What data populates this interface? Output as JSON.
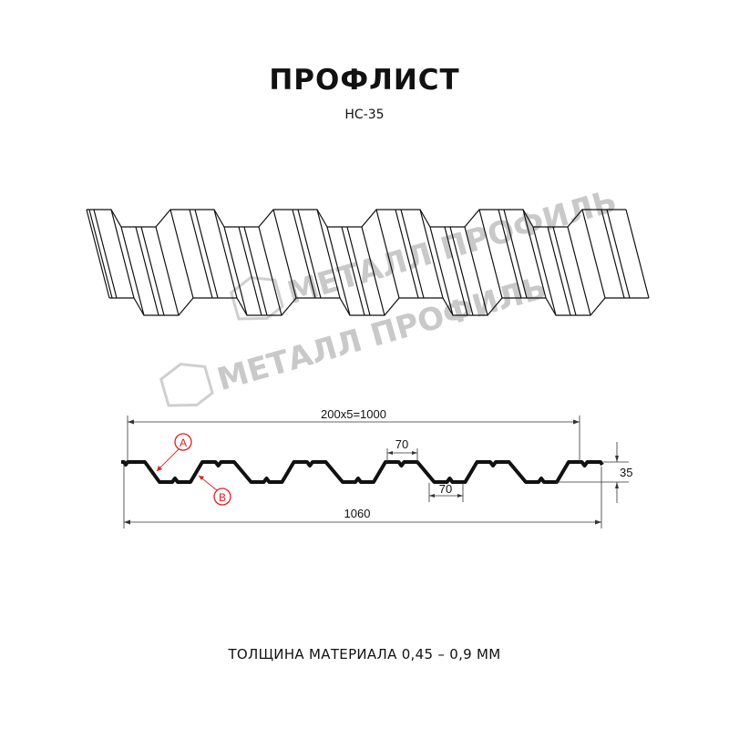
{
  "header": {
    "title": "ПРОФЛИСТ",
    "subtitle": "НС-35"
  },
  "watermark": {
    "text": "МЕТАЛЛ ПРОФИЛЬ",
    "color": "#c9c9c9"
  },
  "profile_view": {
    "dimensions": {
      "pitch_total": "200x5=1000",
      "crest_width": "70",
      "valley_width": "70",
      "height": "35",
      "full_width": "1060"
    },
    "markers": [
      {
        "label": "A",
        "color": "#e02020"
      },
      {
        "label": "B",
        "color": "#e02020"
      }
    ]
  },
  "footer": {
    "thickness": "ТОЛЩИНА МАТЕРИАЛА 0,45 – 0,9 ММ"
  }
}
